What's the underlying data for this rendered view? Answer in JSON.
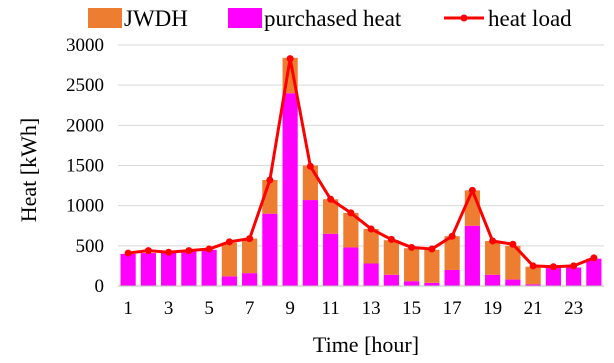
{
  "chart_data": {
    "type": "bar",
    "stacked": true,
    "xlabel": "Time [hour]",
    "ylabel": "Heat [kWh]",
    "ylim": [
      0,
      3000
    ],
    "yticks": [
      "0",
      "500",
      "1000",
      "1500",
      "2000",
      "2500",
      "3000"
    ],
    "categories": [
      1,
      2,
      3,
      4,
      5,
      6,
      7,
      8,
      9,
      10,
      11,
      12,
      13,
      14,
      15,
      16,
      17,
      18,
      19,
      20,
      21,
      22,
      23,
      24
    ],
    "x_tick_labels": [
      "1",
      "3",
      "5",
      "7",
      "9",
      "11",
      "13",
      "15",
      "17",
      "19",
      "21",
      "23"
    ],
    "legend_position": "top",
    "series": [
      {
        "name": "purchased heat",
        "kind": "bar",
        "color": "#ff00ff",
        "values": [
          400,
          410,
          420,
          430,
          450,
          120,
          160,
          900,
          2400,
          1070,
          650,
          480,
          280,
          140,
          60,
          40,
          200,
          750,
          140,
          80,
          20,
          230,
          230,
          340
        ]
      },
      {
        "name": "JWDH",
        "kind": "bar",
        "color": "#ed7d31",
        "values": [
          0,
          0,
          0,
          0,
          0,
          420,
          430,
          420,
          440,
          430,
          430,
          430,
          430,
          430,
          410,
          410,
          420,
          440,
          420,
          420,
          220,
          0,
          0,
          0
        ]
      },
      {
        "name": "heat load",
        "kind": "line",
        "color": "#ff0000",
        "values": [
          410,
          440,
          420,
          440,
          460,
          550,
          590,
          1320,
          2830,
          1490,
          1080,
          910,
          710,
          580,
          480,
          460,
          620,
          1190,
          560,
          520,
          250,
          240,
          250,
          350
        ]
      }
    ]
  }
}
